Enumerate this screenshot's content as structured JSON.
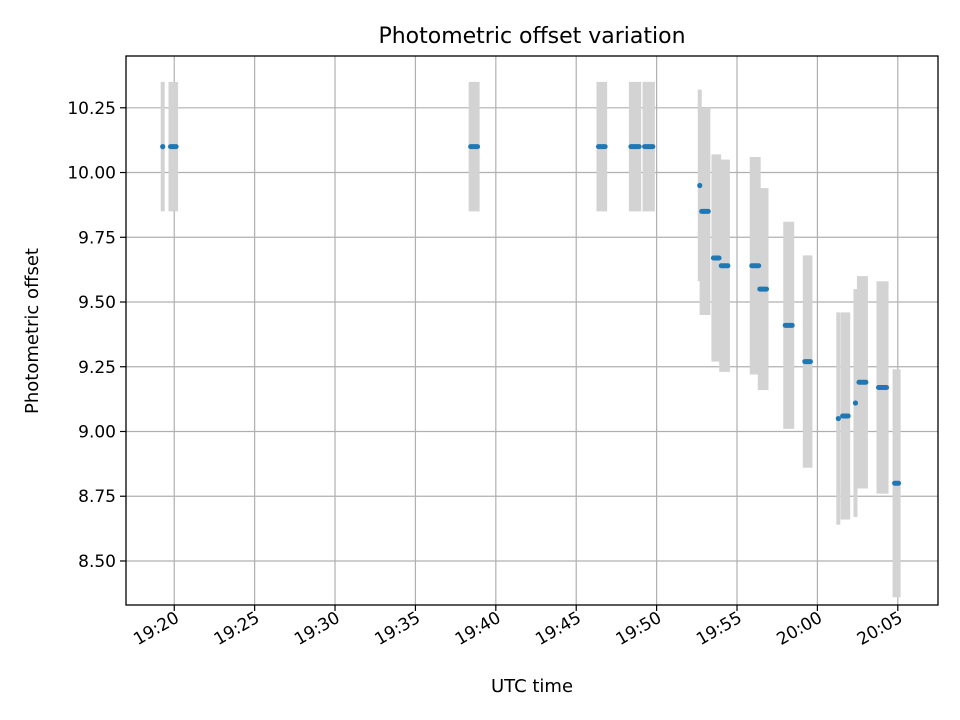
{
  "chart_data": {
    "type": "scatter",
    "title": "Photometric offset variation",
    "xlabel": "UTC time",
    "ylabel": "Photometric offset",
    "xlim": [
      "19:17:00",
      "20:07:30"
    ],
    "ylim": [
      8.33,
      10.45
    ],
    "grid": true,
    "xtick_labels": [
      "19:20",
      "19:25",
      "19:30",
      "19:35",
      "19:40",
      "19:45",
      "19:50",
      "19:55",
      "20:00",
      "20:05"
    ],
    "ytick_labels": [
      "8.50",
      "8.75",
      "9.00",
      "9.25",
      "9.50",
      "9.75",
      "10.00",
      "10.25"
    ],
    "ytick_values": [
      8.5,
      8.75,
      9.0,
      9.25,
      9.5,
      9.75,
      10.0,
      10.25
    ],
    "colors": {
      "point": "#1f77b4",
      "errorbar": "#d3d3d3",
      "grid": "#b0b0b0"
    },
    "points": [
      {
        "t": "19:19:17",
        "t_end": "19:19:17",
        "y": 10.1,
        "err": 0.25
      },
      {
        "t": "19:19:46",
        "t_end": "19:20:07",
        "y": 10.1,
        "err": 0.25
      },
      {
        "t": "19:38:26",
        "t_end": "19:38:52",
        "y": 10.1,
        "err": 0.25
      },
      {
        "t": "19:46:23",
        "t_end": "19:46:48",
        "y": 10.1,
        "err": 0.25
      },
      {
        "t": "19:48:24",
        "t_end": "19:48:55",
        "y": 10.1,
        "err": 0.25
      },
      {
        "t": "19:49:15",
        "t_end": "19:49:46",
        "y": 10.1,
        "err": 0.25
      },
      {
        "t": "19:52:41",
        "t_end": "19:52:41",
        "y": 9.95,
        "err": 0.37
      },
      {
        "t": "19:52:48",
        "t_end": "19:53:13",
        "y": 9.85,
        "err": 0.4
      },
      {
        "t": "19:53:32",
        "t_end": "19:53:53",
        "y": 9.67,
        "err": 0.4
      },
      {
        "t": "19:54:01",
        "t_end": "19:54:26",
        "y": 9.64,
        "err": 0.41
      },
      {
        "t": "19:55:55",
        "t_end": "19:56:21",
        "y": 9.64,
        "err": 0.42
      },
      {
        "t": "19:56:25",
        "t_end": "19:56:50",
        "y": 9.55,
        "err": 0.39
      },
      {
        "t": "19:58:00",
        "t_end": "19:58:26",
        "y": 9.41,
        "err": 0.4
      },
      {
        "t": "19:59:13",
        "t_end": "19:59:34",
        "y": 9.27,
        "err": 0.41
      },
      {
        "t": "20:01:18",
        "t_end": "20:01:18",
        "y": 9.05,
        "err": 0.41
      },
      {
        "t": "20:01:34",
        "t_end": "20:01:55",
        "y": 9.06,
        "err": 0.4
      },
      {
        "t": "20:02:22",
        "t_end": "20:02:22",
        "y": 9.11,
        "err": 0.44
      },
      {
        "t": "20:02:35",
        "t_end": "20:03:01",
        "y": 9.19,
        "err": 0.41
      },
      {
        "t": "20:03:48",
        "t_end": "20:04:18",
        "y": 9.17,
        "err": 0.41
      },
      {
        "t": "20:04:48",
        "t_end": "20:05:03",
        "y": 8.8,
        "err": 0.44
      }
    ]
  }
}
